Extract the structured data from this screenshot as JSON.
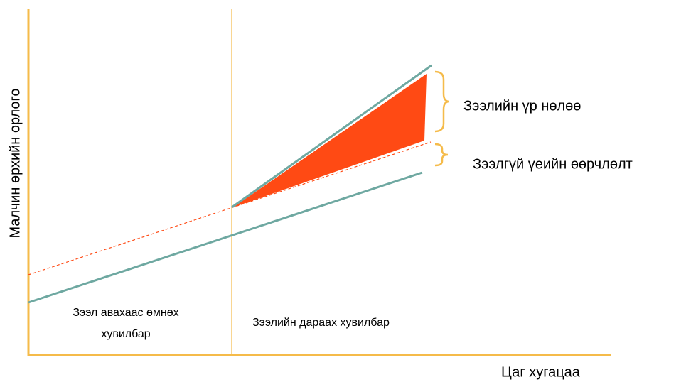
{
  "axes": {
    "y_label": "Малчин өрхийн орлого",
    "x_label": "Цаг хугацаа"
  },
  "annotations": {
    "effect": "Зээлийн үр нөлөө",
    "no_loan_change": "Зээлгүй үеийн өөрчлөлт"
  },
  "regions": [
    {
      "label_lines": [
        "Зээл авахаас өмнөх",
        "хувилбар"
      ]
    },
    {
      "label_lines": [
        "Зээлийн дараах хувилбар"
      ]
    }
  ]
}
